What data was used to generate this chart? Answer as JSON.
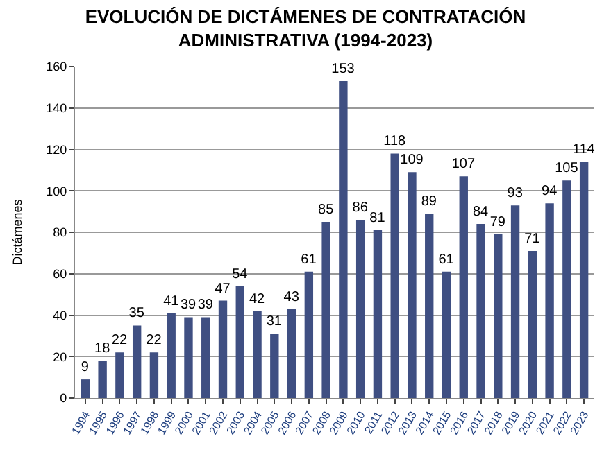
{
  "chart_data": {
    "type": "bar",
    "title": "EVOLUCIÓN DE DICTÁMENES DE CONTRATACIÓN\nADMINISTRATIVA (1994-2023)",
    "ylabel": "Dictámenes",
    "categories": [
      "1994",
      "1995",
      "1996",
      "1997",
      "1998",
      "1999",
      "2000",
      "2001",
      "2002",
      "2003",
      "2004",
      "2005",
      "2006",
      "2007",
      "2008",
      "2009",
      "2010",
      "2011",
      "2012",
      "2013",
      "2014",
      "2015",
      "2016",
      "2017",
      "2018",
      "2019",
      "2020",
      "2021",
      "2022",
      "2023"
    ],
    "values": [
      9,
      18,
      22,
      35,
      22,
      41,
      39,
      39,
      47,
      54,
      42,
      31,
      43,
      61,
      85,
      153,
      86,
      81,
      118,
      109,
      89,
      61,
      107,
      84,
      79,
      93,
      71,
      94,
      105,
      114
    ],
    "color": "#3f4f82",
    "ylim": [
      0,
      160
    ],
    "yticks": [
      0,
      20,
      40,
      60,
      80,
      100,
      120,
      140,
      160
    ],
    "grid": "y",
    "data_labels": true
  }
}
